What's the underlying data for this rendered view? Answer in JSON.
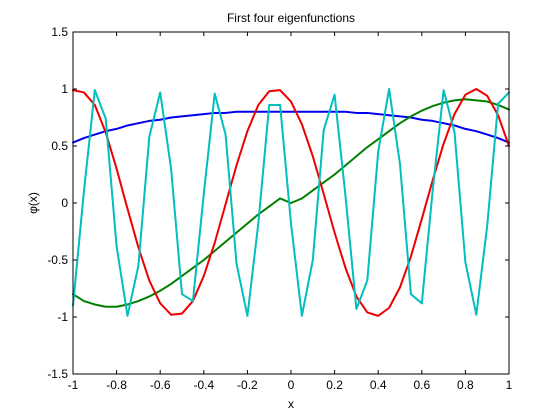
{
  "chart_data": {
    "type": "line",
    "title": "First four eigenfunctions",
    "xlabel": "x",
    "ylabel": "φ(x)",
    "xlim": [
      -1,
      1
    ],
    "ylim": [
      -1.5,
      1.5
    ],
    "grid": false,
    "legend": "none",
    "xticks": [
      -1,
      -0.8,
      -0.6,
      -0.4,
      -0.2,
      0,
      0.2,
      0.4,
      0.6,
      0.8,
      1
    ],
    "xtick_labels": [
      "-1",
      "-0.8",
      "-0.6",
      "-0.4",
      "-0.2",
      "0",
      "0.2",
      "0.4",
      "0.6",
      "0.8",
      "1"
    ],
    "yticks": [
      -1.5,
      -1,
      -0.5,
      0,
      0.5,
      1,
      1.5
    ],
    "ytick_labels": [
      "-1.5",
      "-1",
      "-0.5",
      "0",
      "0.5",
      "1",
      "1.5"
    ],
    "x": [
      -1,
      -0.95,
      -0.9,
      -0.85,
      -0.8,
      -0.75,
      -0.7,
      -0.65,
      -0.6,
      -0.55,
      -0.5,
      -0.45,
      -0.4,
      -0.35,
      -0.3,
      -0.25,
      -0.2,
      -0.15,
      -0.1,
      -0.05,
      0,
      0.05,
      0.1,
      0.15,
      0.2,
      0.25,
      0.3,
      0.35,
      0.4,
      0.45,
      0.5,
      0.55,
      0.6,
      0.65,
      0.7,
      0.75,
      0.8,
      0.85,
      0.9,
      0.95,
      1
    ],
    "series": [
      {
        "color": "#0000ee",
        "values": [
          0.53,
          0.57,
          0.6,
          0.63,
          0.65,
          0.68,
          0.7,
          0.72,
          0.73,
          0.75,
          0.76,
          0.77,
          0.78,
          0.79,
          0.79,
          0.8,
          0.8,
          0.8,
          0.8,
          0.8,
          0.8,
          0.8,
          0.8,
          0.8,
          0.8,
          0.8,
          0.79,
          0.79,
          0.78,
          0.77,
          0.76,
          0.75,
          0.73,
          0.72,
          0.7,
          0.68,
          0.65,
          0.63,
          0.6,
          0.57,
          0.53
        ]
      },
      {
        "color": "#007f00",
        "values": [
          -0.8,
          -0.86,
          -0.89,
          -0.91,
          -0.91,
          -0.89,
          -0.86,
          -0.82,
          -0.77,
          -0.71,
          -0.64,
          -0.57,
          -0.5,
          -0.42,
          -0.34,
          -0.26,
          -0.18,
          -0.1,
          -0.03,
          0.04,
          0.0,
          0.04,
          0.11,
          0.18,
          0.25,
          0.33,
          0.41,
          0.49,
          0.56,
          0.63,
          0.7,
          0.76,
          0.81,
          0.85,
          0.88,
          0.9,
          0.91,
          0.9,
          0.89,
          0.86,
          0.82
        ]
      },
      {
        "color": "#ee0000",
        "values": [
          0.99,
          0.97,
          0.86,
          0.62,
          0.3,
          -0.05,
          -0.39,
          -0.68,
          -0.88,
          -0.98,
          -0.97,
          -0.86,
          -0.64,
          -0.35,
          -0.01,
          0.33,
          0.63,
          0.86,
          0.98,
          0.99,
          0.89,
          0.69,
          0.41,
          0.08,
          -0.26,
          -0.57,
          -0.82,
          -0.96,
          -0.99,
          -0.92,
          -0.74,
          -0.47,
          -0.14,
          0.2,
          0.52,
          0.78,
          0.95,
          1.0,
          0.94,
          0.77,
          0.5
        ]
      },
      {
        "color": "#00bfbf",
        "values": [
          -0.9,
          0.1,
          0.99,
          0.74,
          -0.38,
          -0.99,
          -0.55,
          0.58,
          0.97,
          0.3,
          -0.8,
          -0.86,
          0.08,
          0.96,
          0.6,
          -0.53,
          -0.99,
          -0.18,
          0.86,
          0.86,
          -0.18,
          -0.99,
          -0.5,
          0.64,
          0.95,
          0.06,
          -0.93,
          -0.68,
          0.45,
          1.0,
          0.34,
          -0.8,
          -0.88,
          0.11,
          0.99,
          0.62,
          -0.52,
          -0.98,
          -0.2,
          0.87,
          0.97
        ]
      }
    ]
  }
}
